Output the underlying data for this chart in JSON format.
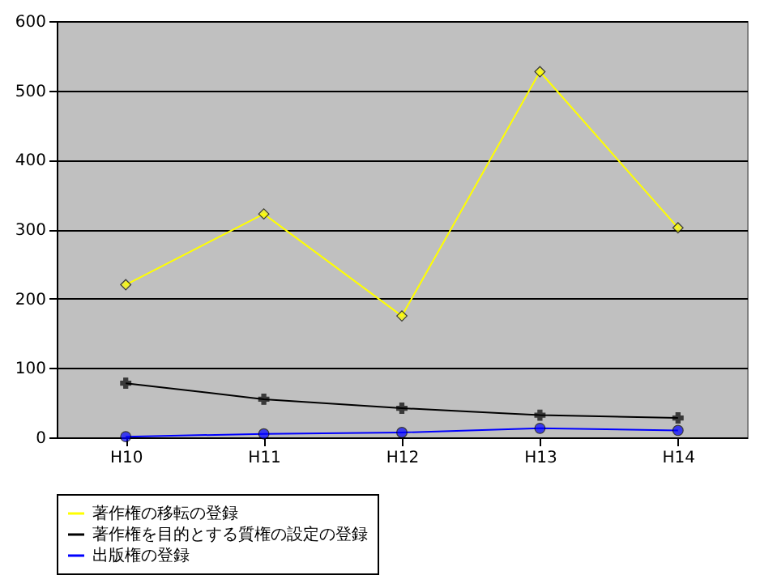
{
  "chart_data": {
    "type": "line",
    "categories": [
      "H10",
      "H11",
      "H12",
      "H13",
      "H14"
    ],
    "series": [
      {
        "name": "著作権の移転の登録",
        "color": "#ffff00",
        "marker": "diamond",
        "values": [
          220,
          322,
          175,
          527,
          302
        ]
      },
      {
        "name": "著作権を目的とする質権の設定の登録",
        "color": "#000000",
        "marker": "cross",
        "values": [
          78,
          55,
          42,
          32,
          28
        ]
      },
      {
        "name": "出版権の登録",
        "color": "#0000ff",
        "marker": "circle",
        "values": [
          1,
          5,
          7,
          13,
          10
        ]
      }
    ],
    "ylim": [
      0,
      600
    ],
    "yticks": [
      0,
      100,
      200,
      300,
      400,
      500,
      600
    ],
    "grid": "y",
    "legend": "bottom",
    "line_style": "solid"
  }
}
